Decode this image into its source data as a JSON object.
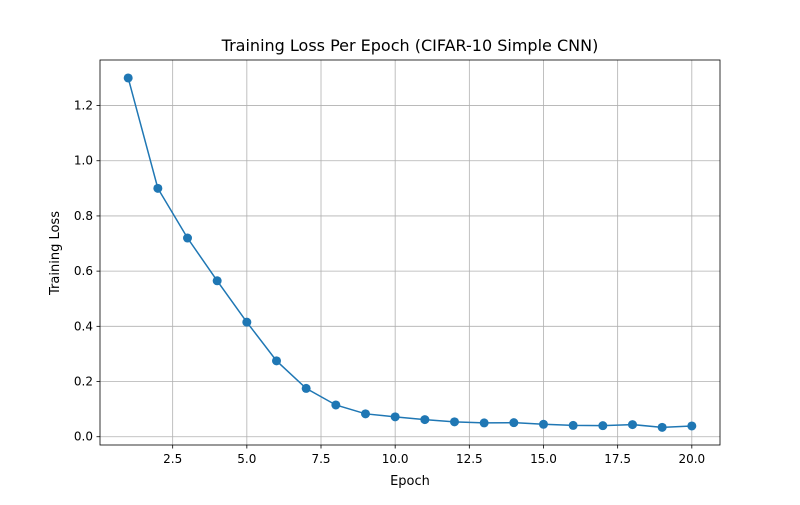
{
  "colors": {
    "series": "#1f77b4",
    "grid": "#b0b0b0",
    "axis": "#000000",
    "background": "#ffffff"
  },
  "chart_data": {
    "type": "line",
    "title": "Training Loss Per Epoch (CIFAR-10 Simple CNN)",
    "xlabel": "Epoch",
    "ylabel": "Training Loss",
    "xlim": [
      0.05,
      20.95
    ],
    "ylim": [
      -0.03,
      1.365
    ],
    "xticks": [
      2.5,
      5.0,
      7.5,
      10.0,
      12.5,
      15.0,
      17.5,
      20.0
    ],
    "xtick_labels": [
      "2.5",
      "5.0",
      "7.5",
      "10.0",
      "12.5",
      "15.0",
      "17.5",
      "20.0"
    ],
    "yticks": [
      0.0,
      0.2,
      0.4,
      0.6,
      0.8,
      1.0,
      1.2
    ],
    "ytick_labels": [
      "0.0",
      "0.2",
      "0.4",
      "0.6",
      "0.8",
      "1.0",
      "1.2"
    ],
    "grid": true,
    "legend": "none",
    "x": [
      1,
      2,
      3,
      4,
      5,
      6,
      7,
      8,
      9,
      10,
      11,
      12,
      13,
      14,
      15,
      16,
      17,
      18,
      19,
      20
    ],
    "series": [
      {
        "values": [
          1.3,
          0.9,
          0.72,
          0.565,
          0.415,
          0.275,
          0.175,
          0.115,
          0.083,
          0.072,
          0.062,
          0.054,
          0.05,
          0.051,
          0.045,
          0.041,
          0.04,
          0.044,
          0.034,
          0.039
        ]
      }
    ]
  }
}
